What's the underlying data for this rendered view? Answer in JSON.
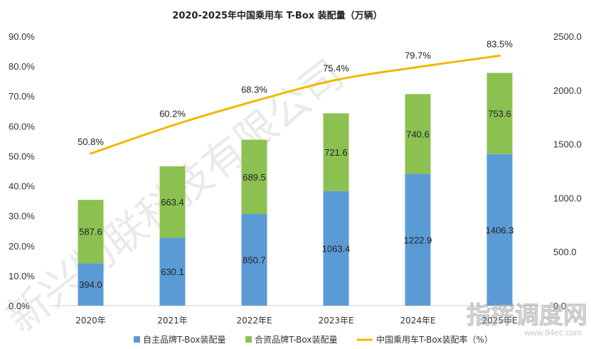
{
  "chart_data": {
    "type": "bar",
    "title": "2020-2025年中国乘用车 T-Box 装配量（万辆）",
    "categories": [
      "2020年",
      "2021年",
      "2022年E",
      "2023年E",
      "2024年E",
      "2025年E"
    ],
    "series": [
      {
        "name": "自主品牌T-Box装配量",
        "type": "bar",
        "axis": "right",
        "color": "#5b9bd5",
        "values": [
          394.0,
          630.1,
          850.7,
          1063.4,
          1222.9,
          1406.3
        ]
      },
      {
        "name": "合资品牌T-Box装配量",
        "type": "bar",
        "axis": "right",
        "color": "#8cc152",
        "values": [
          587.6,
          663.4,
          689.5,
          721.6,
          740.6,
          753.6
        ]
      },
      {
        "name": "中国乘用车T-Box装配率（%）",
        "type": "line",
        "axis": "left",
        "color": "#f2b800",
        "values": [
          50.8,
          60.2,
          68.3,
          75.4,
          79.7,
          83.5
        ]
      }
    ],
    "stacked": true,
    "left_axis": {
      "min": 0,
      "max": 90,
      "step": 10,
      "format": "percent_1dp"
    },
    "right_axis": {
      "min": 0,
      "max": 2500,
      "step": 500,
      "format": "1dp"
    },
    "legend": "bottom",
    "grid": false
  },
  "watermark": {
    "text": "新兴物联科技有限公司",
    "logo_text": "指挥调度网",
    "logo_url": "www.94ec.com"
  }
}
